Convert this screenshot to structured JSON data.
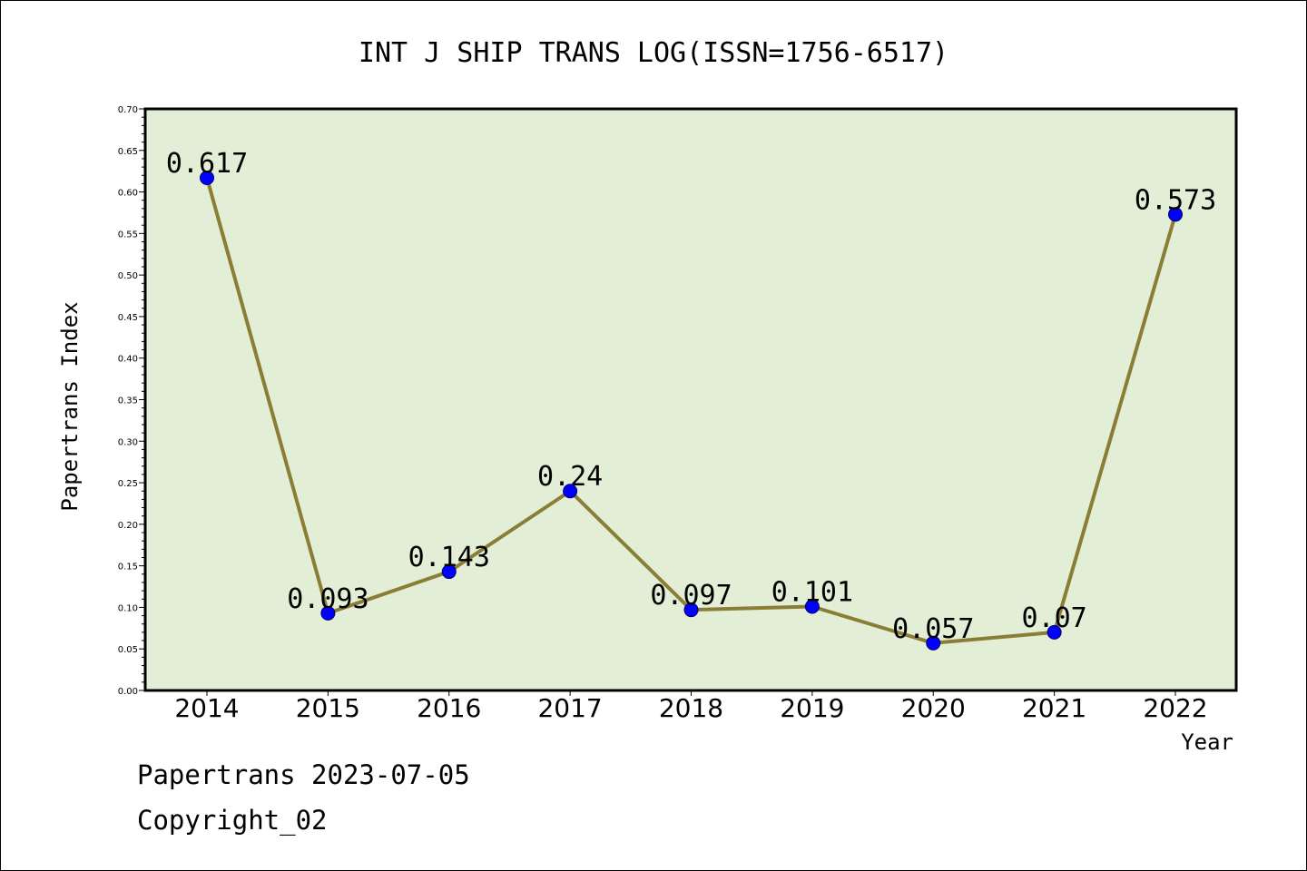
{
  "chart_data": {
    "type": "line",
    "title": "INT J SHIP TRANS LOG(ISSN=1756-6517)",
    "xlabel": "Year",
    "ylabel": "Papertrans Index",
    "categories": [
      "2014",
      "2015",
      "2016",
      "2017",
      "2018",
      "2019",
      "2020",
      "2021",
      "2022"
    ],
    "series": [
      {
        "values": [
          0.617,
          0.093,
          0.143,
          0.24,
          0.097,
          0.101,
          0.057,
          0.07,
          0.573
        ],
        "labels": [
          "0.617",
          "0.093",
          "0.143",
          "0.24",
          "0.097",
          "0.101",
          "0.057",
          "0.07",
          "0.573"
        ]
      }
    ],
    "ylim": [
      0,
      0.7
    ],
    "yticks": [
      "0.00",
      "0.05",
      "0.10",
      "0.15",
      "0.20",
      "0.25",
      "0.30",
      "0.35",
      "0.40",
      "0.45",
      "0.50",
      "0.55",
      "0.60",
      "0.65",
      "0.70"
    ],
    "grid": false,
    "colors": {
      "plot_background": "#e2efd6",
      "line": "#8b7d35",
      "marker": "#0000ff",
      "marker_edge": "#000066"
    }
  },
  "footer": {
    "date_line": "Papertrans 2023-07-05",
    "copyright_line": "Copyright_02"
  }
}
